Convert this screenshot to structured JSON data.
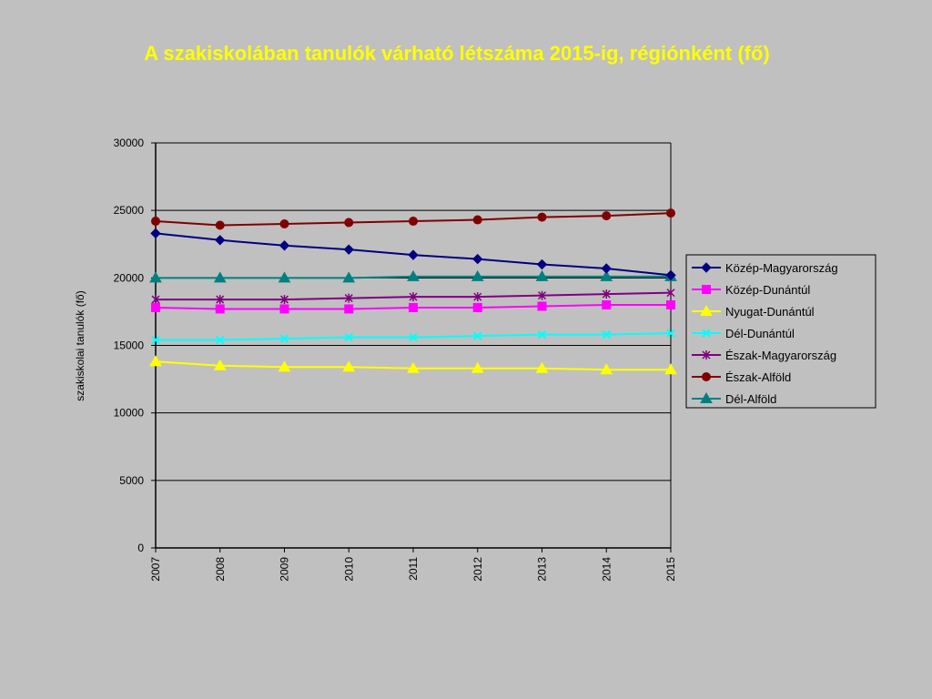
{
  "slide": {
    "title": "A szakiskolában tanulók várható létszáma 2015-ig, régiónként (fő)"
  },
  "chart_data": {
    "type": "line",
    "title": "",
    "xlabel": "",
    "ylabel": "szakiskolai tanulók (fő)",
    "x": [
      "2007",
      "2008",
      "2009",
      "2010",
      "2011",
      "2012",
      "2013",
      "2014",
      "2015"
    ],
    "ylim": [
      0,
      30000
    ],
    "yticks": [
      0,
      5000,
      10000,
      15000,
      20000,
      25000,
      30000
    ],
    "grid": true,
    "legend_position": "right",
    "series": [
      {
        "name": "Közép-Magyarország",
        "color": "#000080",
        "marker": "diamond",
        "values": [
          23300,
          22800,
          22400,
          22100,
          21700,
          21400,
          21000,
          20700,
          20200
        ]
      },
      {
        "name": "Közép-Dunántúl",
        "color": "#ff00ff",
        "marker": "square",
        "values": [
          17800,
          17700,
          17700,
          17700,
          17800,
          17800,
          17900,
          18000,
          18000
        ]
      },
      {
        "name": "Nyugat-Dunántúl",
        "color": "#ffff00",
        "marker": "triangle",
        "values": [
          13800,
          13500,
          13400,
          13400,
          13300,
          13300,
          13300,
          13200,
          13200
        ]
      },
      {
        "name": "Dél-Dunántúl",
        "color": "#00ffff",
        "marker": "x",
        "values": [
          15400,
          15400,
          15500,
          15600,
          15600,
          15700,
          15800,
          15800,
          15900
        ]
      },
      {
        "name": "Észak-Magyarország",
        "color": "#800080",
        "marker": "star",
        "values": [
          18400,
          18400,
          18400,
          18500,
          18600,
          18600,
          18700,
          18800,
          18900
        ]
      },
      {
        "name": "Észak-Alföld",
        "color": "#800000",
        "marker": "circle",
        "values": [
          24200,
          23900,
          24000,
          24100,
          24200,
          24300,
          24500,
          24600,
          24800
        ]
      },
      {
        "name": "Dél-Alföld",
        "color": "#008080",
        "marker": "triangle",
        "values": [
          20000,
          20000,
          20000,
          20000,
          20100,
          20100,
          20100,
          20100,
          20100
        ]
      }
    ]
  }
}
